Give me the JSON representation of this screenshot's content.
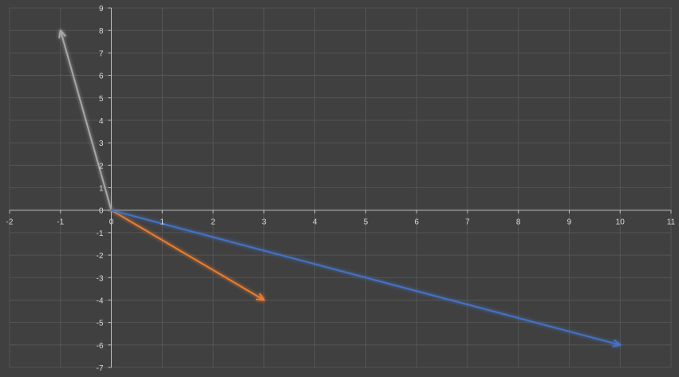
{
  "chart_data": {
    "type": "line",
    "title": "",
    "xlabel": "",
    "ylabel": "",
    "xlim": [
      -2,
      11
    ],
    "ylim": [
      -7,
      9
    ],
    "grid": true,
    "legend": "none",
    "x_ticks": [
      "-2",
      "-1",
      "0",
      "1",
      "2",
      "3",
      "4",
      "5",
      "6",
      "7",
      "8",
      "9",
      "10",
      "11"
    ],
    "y_ticks": [
      "9",
      "8",
      "7",
      "6",
      "5",
      "4",
      "3",
      "2",
      "1",
      "0",
      "-1",
      "-2",
      "-3",
      "-4",
      "-5",
      "-6",
      "-7"
    ],
    "series": [
      {
        "color": "#a6a6a6",
        "points": [
          [
            0,
            0
          ],
          [
            -1,
            8
          ]
        ]
      },
      {
        "color": "#ed7d31",
        "points": [
          [
            0,
            0
          ],
          [
            3,
            -4
          ]
        ]
      },
      {
        "color": "#4472c4",
        "points": [
          [
            0,
            0
          ],
          [
            10,
            -6
          ]
        ]
      }
    ]
  },
  "colors": {
    "background": "#404040",
    "grid": "#595959",
    "axis": "#bfbfbf",
    "label": "#d9d9d9"
  }
}
